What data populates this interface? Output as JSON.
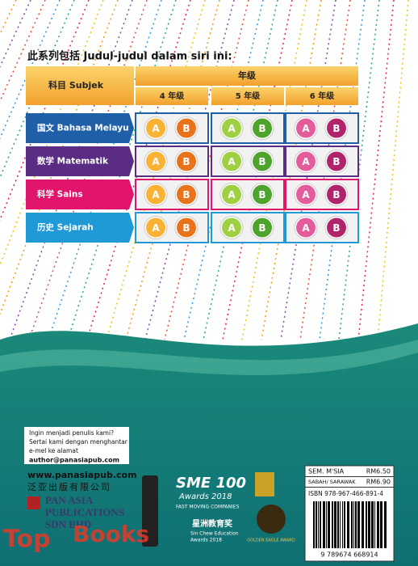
{
  "heading": "此系列包括 Judul-judul dalam siri ini:",
  "table": {
    "subject_header": "科目 Subjek",
    "grade_header": "年级",
    "grades": [
      "4 年级",
      "5 年级",
      "6 年级"
    ],
    "volumes": [
      "A",
      "B"
    ],
    "rows": [
      {
        "subject": "国文 Bahasa Melayu",
        "color": "#1f5fa8"
      },
      {
        "subject": "数学 Matematik",
        "color": "#5b2c83"
      },
      {
        "subject": "科学 Sains",
        "color": "#e0156b"
      },
      {
        "subject": "历史 Sejarah",
        "color": "#1f9ad6"
      }
    ]
  },
  "author_box": [
    "Ingin menjadi penulis kami?",
    "Sertai kami dengan menghantar",
    "e-mel ke alamat",
    "author@panasiapub.com"
  ],
  "website": "www.panasiapub.com",
  "company_cn": "泛亚出版有限公司",
  "company_en": [
    "PAN ASIA",
    "PUBLICATIONS",
    "SDN BHD"
  ],
  "awards": {
    "sme": "SME 100",
    "sme_sub": "Awards 2018",
    "sme_tag": "FAST MOVING COMPANIES",
    "sinchew_cn": "星洲教育奖",
    "sinchew_en": "Sin Chew Education",
    "sinchew_year": "Awards 2018",
    "golden_eagle": "GOLDEN EAGLE AWARD"
  },
  "price": {
    "rows": [
      {
        "region": "SEM. M'SIA",
        "amount": "RM6.50"
      },
      {
        "region": "SABAH/ SARAWAK",
        "amount": "RM6.90"
      }
    ],
    "isbn": "ISBN 978-967-466-891-4",
    "barcode_number": "9 789674 668914"
  },
  "watermark": [
    "Top",
    "Books"
  ]
}
